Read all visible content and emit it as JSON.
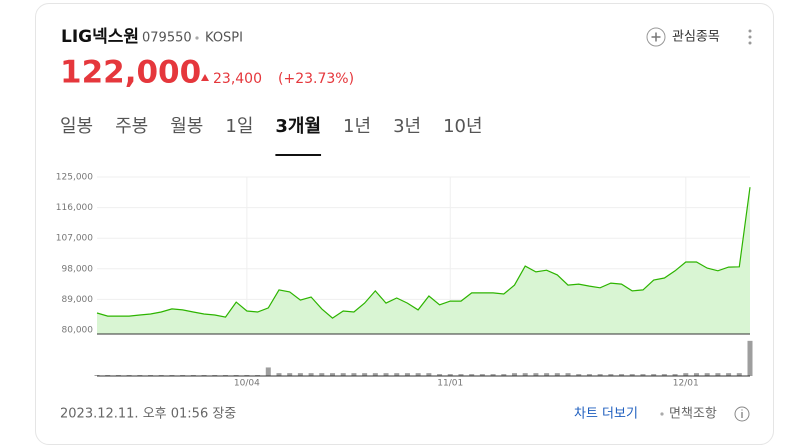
{
  "header": {
    "name": "LIG넥스원",
    "code": "079550",
    "market": "KOSPI",
    "price": "122,000",
    "change": "23,400",
    "change_percent": "(+23.73%)",
    "watch_label": "관심종목"
  },
  "tabs": {
    "items": [
      "일봉",
      "주봉",
      "월봉",
      "1일",
      "3개월",
      "1년",
      "3년",
      "10년"
    ],
    "active": 4
  },
  "chart_data": {
    "type": "area",
    "color": "#2db400",
    "fill": "#d9f5d3",
    "categories": [
      null,
      null,
      null,
      null,
      null,
      null,
      null,
      null,
      null,
      null,
      null,
      null,
      null,
      null,
      "10/04",
      null,
      null,
      null,
      null,
      null,
      null,
      null,
      null,
      null,
      null,
      null,
      null,
      null,
      null,
      null,
      null,
      null,
      null,
      "11/01",
      null,
      null,
      null,
      null,
      null,
      null,
      null,
      null,
      null,
      null,
      null,
      null,
      null,
      null,
      null,
      null,
      null,
      null,
      null,
      null,
      null,
      "12/01",
      null,
      null,
      null,
      null,
      null,
      null
    ],
    "values": [
      85000,
      84100,
      84100,
      84100,
      84400,
      84700,
      85300,
      86200,
      85900,
      85300,
      84700,
      84400,
      83800,
      88200,
      85600,
      85300,
      86500,
      91800,
      91200,
      88800,
      89700,
      86200,
      83500,
      85600,
      85300,
      87900,
      91500,
      87900,
      89400,
      87900,
      85900,
      90000,
      87400,
      88500,
      88500,
      90900,
      90900,
      90900,
      90600,
      93200,
      98800,
      97100,
      97600,
      96200,
      93200,
      93500,
      92900,
      92400,
      93800,
      93500,
      91500,
      91800,
      94700,
      95300,
      97400,
      100000,
      100000,
      98200,
      97400,
      98500,
      98600,
      122000
    ],
    "ylim": [
      80000,
      125000
    ],
    "yticks": [
      {
        "value": 80000,
        "label": "80,000"
      },
      {
        "value": 89000,
        "label": "89,000"
      },
      {
        "value": 98000,
        "label": "98,000"
      },
      {
        "value": 107000,
        "label": "107,000"
      },
      {
        "value": 116000,
        "label": "116,000"
      },
      {
        "value": 125000,
        "label": "125,000"
      }
    ],
    "grid": true,
    "volume": {
      "color": "#9e9e9e",
      "ylim": [
        0,
        40
      ],
      "values": [
        1,
        1,
        1,
        1,
        1,
        1,
        1,
        1,
        1,
        1,
        1,
        1,
        1,
        1,
        1,
        1,
        9,
        3,
        3,
        3,
        3,
        3,
        3,
        3,
        3,
        3,
        3,
        3,
        3,
        3,
        3,
        3,
        2,
        2,
        2,
        2,
        2,
        2,
        2,
        3,
        3,
        3,
        3,
        3,
        3,
        2,
        2,
        2,
        2,
        2,
        2,
        2,
        2,
        2,
        2,
        3,
        3,
        3,
        3,
        3,
        3,
        37
      ]
    }
  },
  "footer": {
    "timestamp": "2023.12.11. 오후 01:56 장중",
    "more_link": "차트 더보기",
    "disclaimer": "면책조항"
  }
}
